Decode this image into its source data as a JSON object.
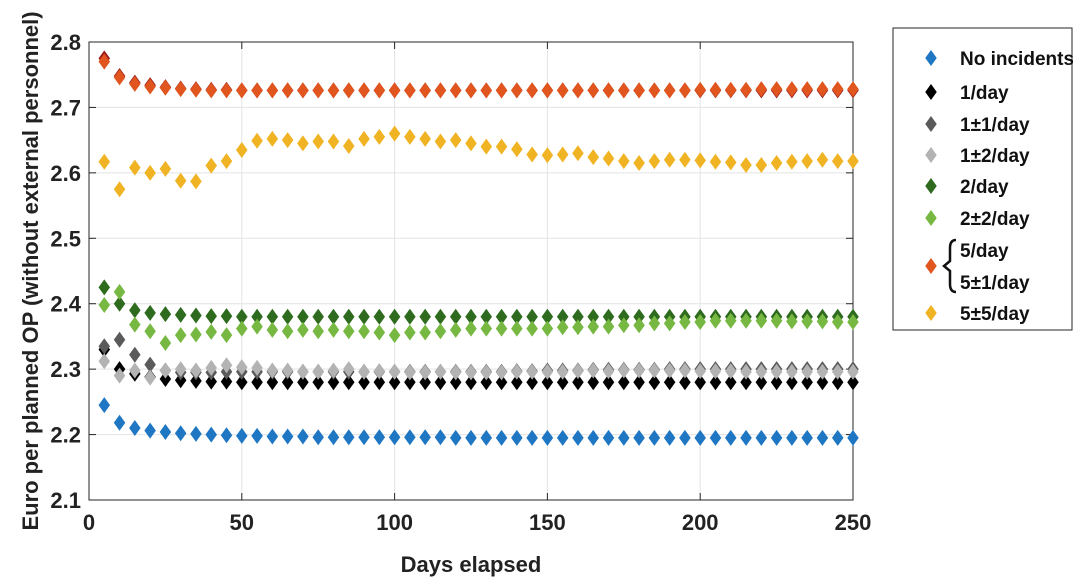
{
  "chart_data": {
    "type": "scatter",
    "xlabel": "Days elapsed",
    "ylabel": "Euro per planned OP (without external personnel)",
    "xlim": [
      0,
      250
    ],
    "ylim": [
      2.1,
      2.8
    ],
    "xticks": [
      0,
      50,
      100,
      150,
      200,
      250
    ],
    "yticks": [
      2.1,
      2.2,
      2.3,
      2.4,
      2.5,
      2.6,
      2.7,
      2.8
    ],
    "grid": true,
    "legend_position": "outside-right",
    "legend_group_brace": "5/day and 5±1/day share one marker",
    "x": [
      5,
      10,
      15,
      20,
      25,
      30,
      35,
      40,
      45,
      50,
      55,
      60,
      65,
      70,
      75,
      80,
      85,
      90,
      95,
      100,
      105,
      110,
      115,
      120,
      125,
      130,
      135,
      140,
      145,
      150,
      155,
      160,
      165,
      170,
      175,
      180,
      185,
      190,
      195,
      200,
      205,
      210,
      215,
      220,
      225,
      230,
      235,
      240,
      245,
      250
    ],
    "series": [
      {
        "name": "No incidents",
        "color": "#1f77c4",
        "values": [
          2.245,
          2.218,
          2.21,
          2.206,
          2.204,
          2.202,
          2.201,
          2.2,
          2.199,
          2.198,
          2.198,
          2.197,
          2.197,
          2.197,
          2.196,
          2.196,
          2.196,
          2.196,
          2.196,
          2.196,
          2.196,
          2.196,
          2.196,
          2.195,
          2.195,
          2.195,
          2.195,
          2.195,
          2.195,
          2.195,
          2.195,
          2.195,
          2.195,
          2.195,
          2.195,
          2.195,
          2.195,
          2.195,
          2.195,
          2.195,
          2.195,
          2.195,
          2.195,
          2.195,
          2.195,
          2.195,
          2.195,
          2.195,
          2.195,
          2.195
        ]
      },
      {
        "name": "1/day",
        "color": "#000000",
        "values": [
          2.33,
          2.3,
          2.293,
          2.288,
          2.285,
          2.283,
          2.282,
          2.281,
          2.281,
          2.28,
          2.28,
          2.28,
          2.28,
          2.28,
          2.28,
          2.28,
          2.28,
          2.28,
          2.28,
          2.28,
          2.28,
          2.28,
          2.28,
          2.28,
          2.28,
          2.28,
          2.28,
          2.28,
          2.28,
          2.28,
          2.28,
          2.28,
          2.28,
          2.28,
          2.28,
          2.28,
          2.28,
          2.28,
          2.28,
          2.28,
          2.28,
          2.28,
          2.28,
          2.28,
          2.28,
          2.28,
          2.28,
          2.28,
          2.28,
          2.28
        ]
      },
      {
        "name": "1±1/day",
        "color": "#5a5a5a",
        "values": [
          2.335,
          2.345,
          2.322,
          2.307,
          2.298,
          2.295,
          2.295,
          2.295,
          2.296,
          2.296,
          2.296,
          2.296,
          2.296,
          2.296,
          2.296,
          2.296,
          2.296,
          2.296,
          2.296,
          2.296,
          2.296,
          2.296,
          2.296,
          2.296,
          2.296,
          2.296,
          2.296,
          2.297,
          2.297,
          2.298,
          2.298,
          2.298,
          2.299,
          2.299,
          2.299,
          2.299,
          2.299,
          2.3,
          2.3,
          2.3,
          2.3,
          2.3,
          2.3,
          2.3,
          2.3,
          2.3,
          2.3,
          2.3,
          2.3,
          2.3
        ]
      },
      {
        "name": "1±2/day",
        "color": "#b3b3b3",
        "values": [
          2.312,
          2.29,
          2.298,
          2.287,
          2.298,
          2.3,
          2.298,
          2.302,
          2.306,
          2.303,
          2.302,
          2.298,
          2.298,
          2.296,
          2.296,
          2.298,
          2.3,
          2.296,
          2.297,
          2.296,
          2.295,
          2.295,
          2.296,
          2.295,
          2.295,
          2.295,
          2.295,
          2.296,
          2.296,
          2.296,
          2.296,
          2.297,
          2.298,
          2.297,
          2.298,
          2.298,
          2.298,
          2.298,
          2.298,
          2.297,
          2.297,
          2.297,
          2.296,
          2.296,
          2.296,
          2.296,
          2.296,
          2.296,
          2.296,
          2.296
        ]
      },
      {
        "name": "2/day",
        "color": "#2e6b1e",
        "values": [
          2.425,
          2.4,
          2.39,
          2.386,
          2.384,
          2.383,
          2.382,
          2.381,
          2.381,
          2.38,
          2.38,
          2.38,
          2.38,
          2.38,
          2.38,
          2.38,
          2.38,
          2.38,
          2.38,
          2.38,
          2.38,
          2.38,
          2.38,
          2.38,
          2.38,
          2.38,
          2.38,
          2.38,
          2.38,
          2.38,
          2.38,
          2.38,
          2.38,
          2.38,
          2.38,
          2.38,
          2.38,
          2.38,
          2.38,
          2.38,
          2.38,
          2.38,
          2.38,
          2.38,
          2.38,
          2.38,
          2.38,
          2.38,
          2.38,
          2.38
        ]
      },
      {
        "name": "2±2/day",
        "color": "#77b843",
        "values": [
          2.398,
          2.418,
          2.368,
          2.358,
          2.34,
          2.352,
          2.353,
          2.357,
          2.352,
          2.362,
          2.365,
          2.36,
          2.358,
          2.36,
          2.358,
          2.36,
          2.358,
          2.358,
          2.356,
          2.352,
          2.356,
          2.356,
          2.358,
          2.36,
          2.362,
          2.362,
          2.362,
          2.362,
          2.362,
          2.362,
          2.364,
          2.364,
          2.365,
          2.365,
          2.367,
          2.367,
          2.37,
          2.37,
          2.372,
          2.372,
          2.374,
          2.374,
          2.374,
          2.374,
          2.374,
          2.373,
          2.373,
          2.373,
          2.372,
          2.372
        ]
      },
      {
        "name": "5/day",
        "color": "#9b1c1c",
        "values": [
          2.775,
          2.748,
          2.738,
          2.734,
          2.731,
          2.729,
          2.728,
          2.727,
          2.727,
          2.726,
          2.726,
          2.726,
          2.726,
          2.726,
          2.726,
          2.726,
          2.726,
          2.726,
          2.726,
          2.726,
          2.726,
          2.726,
          2.726,
          2.726,
          2.726,
          2.726,
          2.726,
          2.726,
          2.726,
          2.726,
          2.726,
          2.726,
          2.726,
          2.726,
          2.726,
          2.726,
          2.726,
          2.726,
          2.726,
          2.726,
          2.726,
          2.726,
          2.726,
          2.726,
          2.726,
          2.726,
          2.726,
          2.726,
          2.726,
          2.726
        ]
      },
      {
        "name": "5±1/day",
        "color": "#e0561e",
        "values": [
          2.77,
          2.746,
          2.736,
          2.732,
          2.73,
          2.728,
          2.727,
          2.726,
          2.726,
          2.726,
          2.726,
          2.726,
          2.726,
          2.726,
          2.726,
          2.726,
          2.726,
          2.726,
          2.726,
          2.726,
          2.726,
          2.726,
          2.726,
          2.726,
          2.726,
          2.726,
          2.726,
          2.726,
          2.726,
          2.726,
          2.726,
          2.726,
          2.726,
          2.726,
          2.726,
          2.726,
          2.726,
          2.726,
          2.726,
          2.727,
          2.727,
          2.727,
          2.727,
          2.728,
          2.728,
          2.728,
          2.728,
          2.728,
          2.728,
          2.728
        ]
      },
      {
        "name": "5±5/day",
        "color": "#f0b323",
        "values": [
          2.617,
          2.575,
          2.608,
          2.6,
          2.606,
          2.588,
          2.587,
          2.611,
          2.618,
          2.635,
          2.649,
          2.652,
          2.65,
          2.645,
          2.648,
          2.648,
          2.641,
          2.652,
          2.655,
          2.66,
          2.655,
          2.652,
          2.648,
          2.65,
          2.645,
          2.64,
          2.64,
          2.636,
          2.628,
          2.627,
          2.628,
          2.63,
          2.624,
          2.622,
          2.618,
          2.615,
          2.618,
          2.62,
          2.62,
          2.619,
          2.617,
          2.616,
          2.612,
          2.612,
          2.615,
          2.617,
          2.618,
          2.62,
          2.618,
          2.618
        ]
      }
    ],
    "legend": [
      {
        "label": "No incidents",
        "color": "#1f77c4"
      },
      {
        "label": "1/day",
        "color": "#000000"
      },
      {
        "label": "1±1/day",
        "color": "#5a5a5a"
      },
      {
        "label": "1±2/day",
        "color": "#b3b3b3"
      },
      {
        "label": "2/day",
        "color": "#2e6b1e"
      },
      {
        "label": "2±2/day",
        "color": "#77b843"
      },
      {
        "label": "5/day",
        "color": "#e0561e",
        "group": true
      },
      {
        "label": "5±1/day",
        "color": "#e0561e",
        "group": true
      },
      {
        "label": "5±5/day",
        "color": "#f0b323"
      }
    ]
  }
}
